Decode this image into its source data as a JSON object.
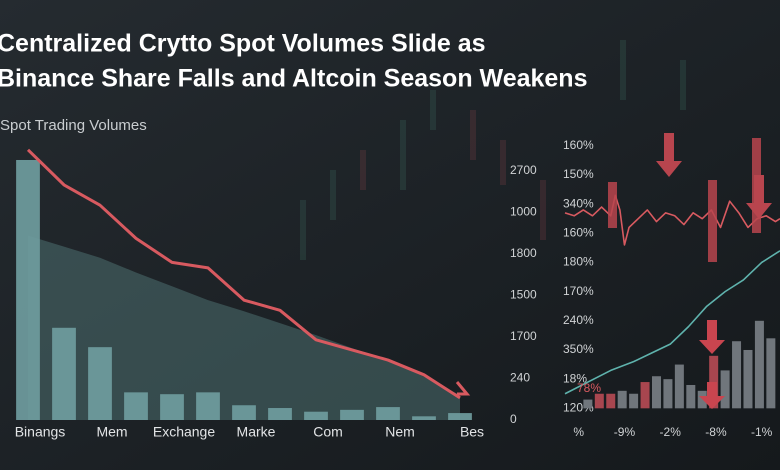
{
  "chart_data": [
    {
      "type": "bar",
      "title": [
        "Centralized Crytto Spot Volumes Slide as",
        "Binance Share Falls and Altcoin Season Weakens"
      ],
      "subtitle": "Spot Trading Volumes",
      "categories": [
        "Binangs",
        null,
        "Mem",
        null,
        "Exchange",
        null,
        "Marke",
        null,
        "Com",
        null,
        "Nem",
        null,
        "Bes"
      ],
      "values": [
        2820,
        1000,
        790,
        300,
        280,
        300,
        160,
        130,
        90,
        110,
        140,
        40,
        75
      ],
      "color": "#6f9c9e",
      "overlays": [
        {
          "type": "area",
          "color": "#4d6f70",
          "values": [
            2000,
            1880,
            1760,
            1600,
            1450,
            1300,
            1180,
            1050,
            920,
            780,
            650,
            470,
            270
          ]
        },
        {
          "type": "line",
          "color": "#d85a60",
          "values": [
            2930,
            2550,
            2330,
            1970,
            1710,
            1650,
            1300,
            1190,
            870,
            760,
            650,
            490,
            240
          ]
        }
      ],
      "ylim": [
        0,
        2950
      ],
      "yticks": [
        {
          "value": 2700,
          "label": "2700"
        },
        {
          "value": 2250,
          "label": "1000"
        },
        {
          "value": 1800,
          "label": "1800"
        },
        {
          "value": 1350,
          "label": "1500"
        },
        {
          "value": 900,
          "label": "1700"
        },
        {
          "value": 450,
          "label": "240"
        },
        0
      ]
    },
    {
      "type": "combo",
      "annotation": "78%",
      "xlim": [
        -0.3,
        4.4
      ],
      "ylim": [
        -0.4,
        9.3
      ],
      "xticks": [
        {
          "value": 0,
          "label": "%"
        },
        {
          "value": 1,
          "label": "-9%"
        },
        {
          "value": 2,
          "label": "-2%"
        },
        {
          "value": 3,
          "label": "-8%"
        },
        {
          "value": 4,
          "label": "-1%"
        }
      ],
      "yticks": [
        {
          "value": 9,
          "label": "160%"
        },
        {
          "value": 8,
          "label": "150%"
        },
        {
          "value": 7,
          "label": "340%"
        },
        {
          "value": 6,
          "label": "160%"
        },
        {
          "value": 5,
          "label": "180%"
        },
        {
          "value": 4,
          "label": "170%"
        },
        {
          "value": 3,
          "label": "240%"
        },
        {
          "value": 2,
          "label": "350%"
        },
        {
          "value": 1,
          "label": "18%"
        },
        {
          "value": 0,
          "label": "120%"
        }
      ],
      "bars": {
        "x": [
          0.2,
          0.45,
          0.7,
          0.95,
          1.2,
          1.45,
          1.7,
          1.95,
          2.2,
          2.45,
          2.7,
          2.95,
          3.2,
          3.45,
          3.7,
          3.95,
          4.2
        ],
        "values": [
          0.3,
          0.5,
          0.5,
          0.6,
          0.5,
          0.9,
          1.1,
          1.0,
          1.5,
          0.8,
          0.6,
          1.8,
          1.3,
          2.3,
          2.0,
          3.0,
          2.4
        ],
        "colors": [
          "#70767c",
          "#a8464f",
          "#a8464f",
          "#70767c",
          "#70767c",
          "#a8464f",
          "#70767c",
          "#70767c",
          "#70767c",
          "#70767c",
          "#70767c",
          "#a8464f",
          "#70767c",
          "#70767c",
          "#70767c",
          "#70767c",
          "#70767c"
        ]
      },
      "lines": [
        {
          "color": "#d85a60",
          "x": [
            -0.3,
            -0.1,
            0.1,
            0.3,
            0.5,
            0.7,
            0.8,
            0.9,
            1.0,
            1.1,
            1.3,
            1.5,
            1.7,
            1.9,
            2.1,
            2.3,
            2.5,
            2.7,
            2.9,
            3.1,
            3.3,
            3.5,
            3.7,
            3.9,
            4.1,
            4.3,
            4.4
          ],
          "values": [
            6.7,
            6.6,
            6.8,
            6.6,
            6.9,
            6.6,
            7.3,
            6.8,
            5.6,
            6.2,
            6.5,
            6.8,
            6.4,
            6.7,
            6.6,
            6.3,
            6.7,
            6.5,
            6.8,
            6.2,
            7.1,
            6.7,
            6.2,
            6.5,
            6.6,
            6.4,
            6.5
          ]
        },
        {
          "color": "#5fb3ad",
          "x": [
            -0.3,
            0.2,
            0.7,
            1.2,
            1.6,
            2.0,
            2.4,
            2.8,
            3.2,
            3.6,
            4.0,
            4.4
          ],
          "values": [
            0.5,
            0.9,
            1.3,
            1.6,
            1.9,
            2.2,
            2.8,
            3.5,
            4.0,
            4.4,
            5.0,
            5.4
          ]
        }
      ]
    }
  ]
}
